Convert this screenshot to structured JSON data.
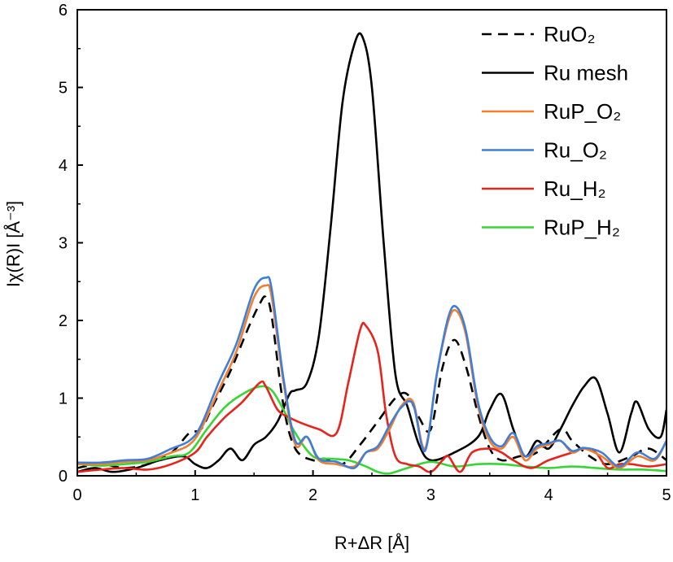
{
  "chart_data": {
    "type": "line",
    "title": "",
    "xlabel": "R+ΔR [Å]",
    "ylabel": "Iχ(R)I [Å⁻³]",
    "xlim": [
      0,
      5
    ],
    "ylim": [
      0,
      6
    ],
    "x_ticks": [
      "0",
      "1",
      "2",
      "3",
      "4",
      "5"
    ],
    "y_ticks": [
      "0",
      "1",
      "2",
      "3",
      "4",
      "5",
      "6"
    ],
    "grid": false,
    "legend_position": "top-right",
    "series": [
      {
        "name": "RuO₂",
        "color": "#000000",
        "dash": "dashed",
        "x": [
          0,
          0.2,
          0.4,
          0.6,
          0.8,
          0.95,
          1.05,
          1.15,
          1.3,
          1.45,
          1.55,
          1.6,
          1.65,
          1.75,
          1.85,
          2.0,
          2.1,
          2.25,
          2.4,
          2.55,
          2.7,
          2.8,
          2.9,
          3.0,
          3.1,
          3.2,
          3.3,
          3.4,
          3.5,
          3.6,
          3.75,
          3.9,
          4.1,
          4.2,
          4.35,
          4.5,
          4.7,
          4.85,
          5.0
        ],
        "y": [
          0.1,
          0.15,
          0.1,
          0.15,
          0.3,
          0.55,
          0.6,
          0.9,
          1.35,
          1.9,
          2.22,
          2.3,
          2.05,
          0.9,
          0.35,
          0.2,
          0.22,
          0.15,
          0.4,
          0.7,
          1.0,
          1.05,
          0.75,
          0.6,
          1.4,
          1.75,
          1.4,
          0.8,
          0.35,
          0.2,
          0.25,
          0.3,
          0.6,
          0.45,
          0.25,
          0.15,
          0.25,
          0.35,
          0.2
        ]
      },
      {
        "name": "Ru mesh",
        "color": "#000000",
        "dash": "solid",
        "x": [
          0,
          0.15,
          0.3,
          0.5,
          0.7,
          0.9,
          1.0,
          1.1,
          1.2,
          1.3,
          1.4,
          1.5,
          1.6,
          1.7,
          1.8,
          1.85,
          1.95,
          2.05,
          2.15,
          2.25,
          2.35,
          2.42,
          2.5,
          2.6,
          2.7,
          2.8,
          2.9,
          3.0,
          3.2,
          3.4,
          3.5,
          3.6,
          3.7,
          3.8,
          3.9,
          4.0,
          4.1,
          4.2,
          4.3,
          4.4,
          4.5,
          4.6,
          4.7,
          4.75,
          4.85,
          4.95,
          5.0
        ],
        "y": [
          0.05,
          0.1,
          0.05,
          0.1,
          0.2,
          0.25,
          0.15,
          0.1,
          0.2,
          0.35,
          0.2,
          0.4,
          0.5,
          0.7,
          1.05,
          1.1,
          1.2,
          1.8,
          3.2,
          4.8,
          5.55,
          5.65,
          5.0,
          3.0,
          1.3,
          0.9,
          0.4,
          0.2,
          0.3,
          0.5,
          0.85,
          1.05,
          0.6,
          0.25,
          0.45,
          0.35,
          0.6,
          0.9,
          1.15,
          1.25,
          0.8,
          0.3,
          0.8,
          0.95,
          0.6,
          0.5,
          0.85
        ]
      },
      {
        "name": "RuP_O₂",
        "color": "#f07f2f",
        "dash": "solid",
        "x": [
          0,
          0.2,
          0.4,
          0.6,
          0.8,
          0.95,
          1.05,
          1.2,
          1.35,
          1.5,
          1.6,
          1.65,
          1.75,
          1.85,
          1.95,
          2.05,
          2.2,
          2.35,
          2.45,
          2.55,
          2.65,
          2.75,
          2.85,
          2.95,
          3.05,
          3.15,
          3.22,
          3.3,
          3.4,
          3.5,
          3.6,
          3.7,
          3.8,
          3.9,
          4.0,
          4.1,
          4.2,
          4.3,
          4.45,
          4.6,
          4.75,
          4.9,
          5.0
        ],
        "y": [
          0.15,
          0.15,
          0.18,
          0.2,
          0.3,
          0.4,
          0.6,
          1.1,
          1.6,
          2.3,
          2.45,
          2.3,
          1.2,
          0.4,
          0.5,
          0.2,
          0.15,
          0.12,
          0.3,
          0.35,
          0.6,
          0.9,
          0.95,
          0.35,
          1.3,
          2.0,
          2.12,
          1.8,
          0.9,
          0.45,
          0.35,
          0.5,
          0.2,
          0.35,
          0.4,
          0.45,
          0.3,
          0.35,
          0.25,
          0.1,
          0.25,
          0.2,
          0.45
        ]
      },
      {
        "name": "Ru_O₂",
        "color": "#3f7fd9",
        "dash": "solid",
        "x": [
          0,
          0.2,
          0.4,
          0.6,
          0.8,
          0.95,
          1.05,
          1.2,
          1.35,
          1.5,
          1.6,
          1.65,
          1.75,
          1.85,
          1.95,
          2.05,
          2.2,
          2.35,
          2.45,
          2.55,
          2.65,
          2.75,
          2.85,
          2.95,
          3.05,
          3.15,
          3.22,
          3.3,
          3.4,
          3.5,
          3.6,
          3.7,
          3.8,
          3.9,
          4.0,
          4.1,
          4.2,
          4.3,
          4.45,
          4.6,
          4.75,
          4.9,
          5.0
        ],
        "y": [
          0.17,
          0.17,
          0.2,
          0.22,
          0.35,
          0.45,
          0.65,
          1.2,
          1.7,
          2.4,
          2.55,
          2.4,
          1.25,
          0.45,
          0.5,
          0.22,
          0.18,
          0.1,
          0.3,
          0.38,
          0.65,
          0.88,
          0.92,
          0.32,
          1.3,
          2.05,
          2.17,
          1.85,
          0.95,
          0.5,
          0.38,
          0.55,
          0.25,
          0.38,
          0.42,
          0.45,
          0.32,
          0.36,
          0.3,
          0.12,
          0.3,
          0.22,
          0.45
        ]
      },
      {
        "name": "Ru_H₂",
        "color": "#e8231c",
        "dash": "solid",
        "x": [
          0,
          0.2,
          0.4,
          0.6,
          0.8,
          1.0,
          1.1,
          1.25,
          1.4,
          1.55,
          1.6,
          1.7,
          1.8,
          1.9,
          2.05,
          2.2,
          2.3,
          2.4,
          2.45,
          2.55,
          2.62,
          2.7,
          2.8,
          2.9,
          3.0,
          3.1,
          3.15,
          3.25,
          3.35,
          3.5,
          3.6,
          3.7,
          3.85,
          4.0,
          4.2,
          4.3,
          4.4,
          4.5,
          4.6,
          4.7,
          4.85,
          5.0
        ],
        "y": [
          0.05,
          0.08,
          0.1,
          0.08,
          0.15,
          0.3,
          0.5,
          0.75,
          0.95,
          1.2,
          1.15,
          0.85,
          0.75,
          0.68,
          0.6,
          0.55,
          1.2,
          1.88,
          1.93,
          1.6,
          0.8,
          0.25,
          0.15,
          0.12,
          0.05,
          0.2,
          0.25,
          0.05,
          0.3,
          0.35,
          0.3,
          0.2,
          0.1,
          0.2,
          0.3,
          0.35,
          0.3,
          0.1,
          0.15,
          0.15,
          0.12,
          0.15
        ]
      },
      {
        "name": "RuP_H₂",
        "color": "#35d635",
        "dash": "solid",
        "x": [
          0,
          0.2,
          0.4,
          0.6,
          0.8,
          0.95,
          1.1,
          1.25,
          1.4,
          1.55,
          1.65,
          1.75,
          1.85,
          2.0,
          2.15,
          2.3,
          2.45,
          2.55,
          2.65,
          2.8,
          3.0,
          3.2,
          3.4,
          3.6,
          3.8,
          4.0,
          4.2,
          4.4,
          4.6,
          4.8,
          5.0
        ],
        "y": [
          0.15,
          0.13,
          0.15,
          0.18,
          0.25,
          0.3,
          0.6,
          0.88,
          1.05,
          1.15,
          1.1,
          0.85,
          0.55,
          0.25,
          0.22,
          0.2,
          0.12,
          0.05,
          0.03,
          0.1,
          0.18,
          0.12,
          0.15,
          0.15,
          0.12,
          0.1,
          0.12,
          0.1,
          0.08,
          0.08,
          0.06
        ]
      }
    ]
  }
}
